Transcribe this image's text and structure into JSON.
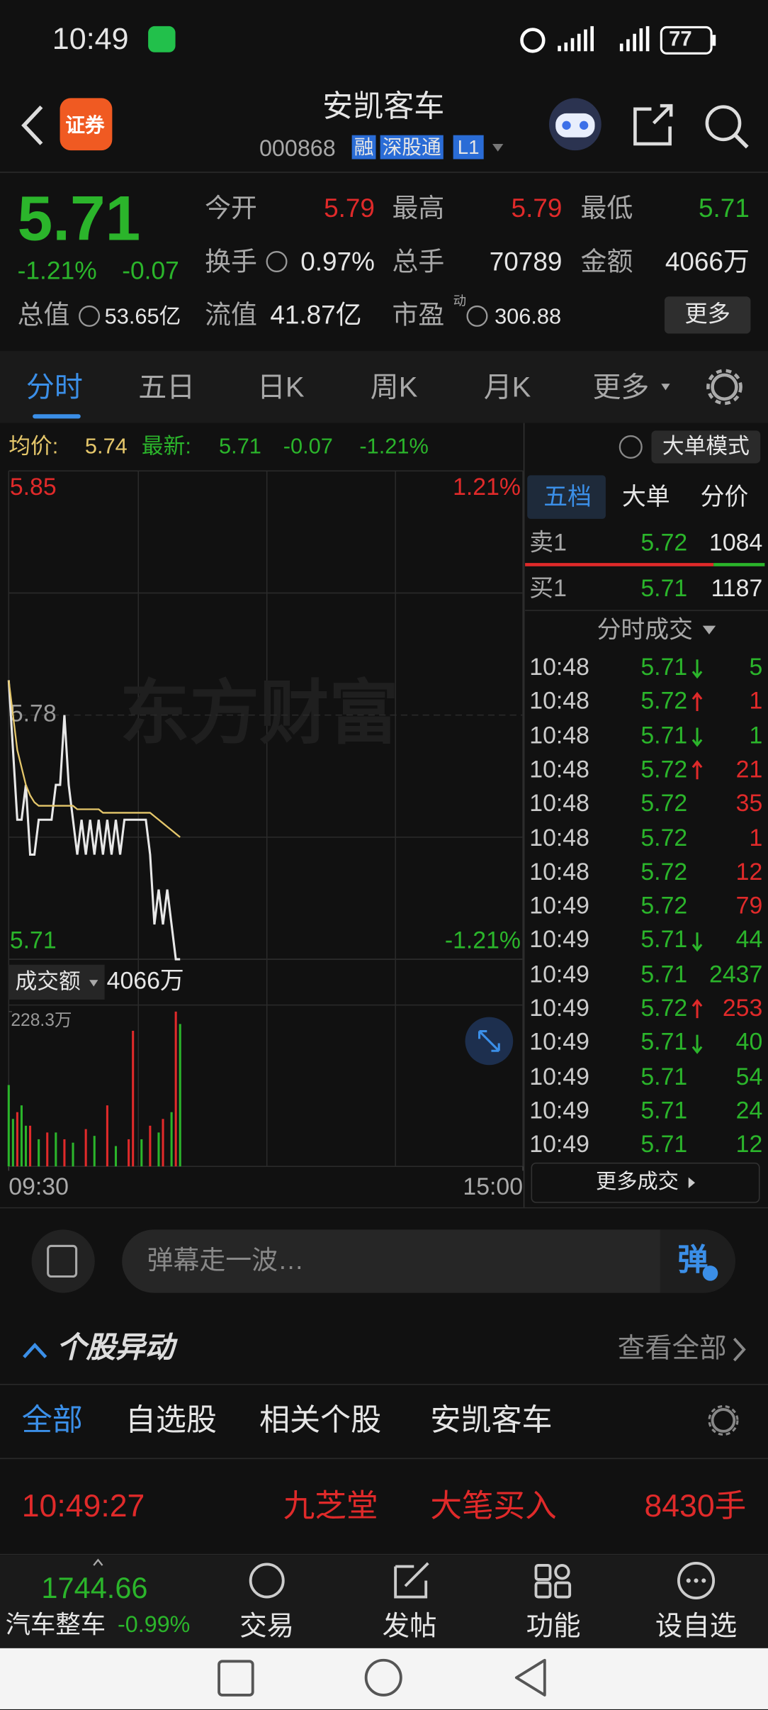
{
  "status_bar": {
    "time": "10:49",
    "battery": "77"
  },
  "header": {
    "logo_text": "证券",
    "title": "安凯客车",
    "code": "000868",
    "badges": [
      "融",
      "深股通",
      "L1"
    ]
  },
  "quote": {
    "price": "5.71",
    "change_percent": "-1.21%",
    "change": "-0.07",
    "stats": [
      {
        "label": "今开",
        "value": "5.79"
      },
      {
        "label": "最高",
        "value": "5.79"
      },
      {
        "label": "最低",
        "value": "5.71"
      },
      {
        "label": "换手",
        "value": "0.97%"
      },
      {
        "label": "总手",
        "value": "70789"
      },
      {
        "label": "金额",
        "value": "4066万"
      },
      {
        "label": "总值",
        "value": "53.65亿"
      },
      {
        "label": "流值",
        "value": "41.87亿"
      },
      {
        "label": "市盈",
        "value": "306.88"
      }
    ],
    "pe_superscript": "动",
    "more_button": "更多"
  },
  "tabs": [
    "分时",
    "五日",
    "日K",
    "周K",
    "月K",
    "更多"
  ],
  "info_line": {
    "avg_label": "均价:",
    "avg_value": "5.74",
    "latest_label": "最新:",
    "latest_value": "5.71",
    "change": "-0.07",
    "change_percent": "-1.21%",
    "mode_button": "大单模式"
  },
  "chart_data": [
    {
      "type": "line",
      "watermark": "东方财富",
      "x": [
        0,
        2,
        4,
        6,
        8,
        10,
        12,
        14,
        16,
        18,
        20,
        22,
        24,
        26,
        28,
        30,
        32,
        34,
        36,
        38,
        40,
        42,
        44,
        46,
        48,
        50,
        52,
        54,
        56,
        58,
        60,
        62,
        64,
        66,
        68,
        70,
        72,
        74,
        76,
        78,
        80
      ],
      "xlim": [
        0,
        240
      ],
      "xticks": [
        {
          "value": 0,
          "label": "09:30"
        },
        {
          "value": 240,
          "label": "15:00"
        }
      ],
      "ylim": [
        5.71,
        5.85
      ],
      "yticks": [
        5.71,
        5.78,
        5.85
      ],
      "y2lim": [
        -1.21,
        1.21
      ],
      "y2ticks": [
        {
          "value": -1.21,
          "label": "-1.21%"
        },
        {
          "value": 1.21,
          "label": "1.21%"
        }
      ],
      "series": [
        {
          "color": "#e8e8e8",
          "values": [
            5.79,
            5.77,
            5.75,
            5.75,
            5.76,
            5.74,
            5.74,
            5.75,
            5.75,
            5.75,
            5.75,
            5.76,
            5.76,
            5.78,
            5.76,
            5.75,
            5.74,
            5.75,
            5.74,
            5.75,
            5.74,
            5.75,
            5.74,
            5.75,
            5.74,
            5.75,
            5.74,
            5.75,
            5.75,
            5.75,
            5.75,
            5.75,
            5.75,
            5.74,
            5.72,
            5.73,
            5.72,
            5.73,
            5.72,
            5.71,
            5.71
          ]
        },
        {
          "color": "#e5c76b",
          "values": [
            5.79,
            5.78,
            5.77,
            5.765,
            5.76,
            5.757,
            5.755,
            5.754,
            5.754,
            5.754,
            5.754,
            5.754,
            5.754,
            5.754,
            5.754,
            5.754,
            5.753,
            5.753,
            5.753,
            5.753,
            5.753,
            5.753,
            5.752,
            5.752,
            5.752,
            5.752,
            5.752,
            5.752,
            5.752,
            5.752,
            5.752,
            5.752,
            5.752,
            5.752,
            5.751,
            5.75,
            5.749,
            5.748,
            5.747,
            5.746,
            5.745
          ]
        }
      ]
    },
    {
      "type": "bar",
      "label": "成交额",
      "total": "4066万",
      "xlim": [
        0,
        240
      ],
      "ylim": [
        0,
        228.3
      ],
      "yticks": [
        {
          "value": 228.3,
          "label": "228.3万"
        }
      ],
      "series": [
        {
          "color": "#e02a2a",
          "x": [
            4,
            10,
            18,
            26,
            36,
            46,
            56,
            58,
            66,
            72,
            78
          ],
          "values": [
            80,
            60,
            50,
            40,
            55,
            90,
            40,
            200,
            60,
            70,
            228.3
          ]
        },
        {
          "color": "#2bb52b",
          "x": [
            0,
            2,
            6,
            8,
            14,
            22,
            30,
            40,
            50,
            62,
            70,
            76,
            80
          ],
          "values": [
            120,
            70,
            90,
            60,
            40,
            50,
            35,
            45,
            30,
            40,
            50,
            80,
            210
          ]
        }
      ]
    }
  ],
  "order_book": {
    "tabs": [
      "五档",
      "大单",
      "分价"
    ],
    "rows": [
      {
        "label": "卖1",
        "price": "5.72",
        "volume": "1084"
      },
      {
        "label": "买1",
        "price": "5.71",
        "volume": "1187"
      }
    ]
  },
  "trades": {
    "title": "分时成交",
    "more": "更多成交",
    "rows": [
      {
        "time": "10:48",
        "price": "5.71",
        "direction": "down",
        "volume": "5",
        "color": "#2bb52b"
      },
      {
        "time": "10:48",
        "price": "5.72",
        "direction": "up",
        "volume": "1",
        "color": "#e02a2a"
      },
      {
        "time": "10:48",
        "price": "5.71",
        "direction": "down",
        "volume": "1",
        "color": "#2bb52b"
      },
      {
        "time": "10:48",
        "price": "5.72",
        "direction": "up",
        "volume": "21",
        "color": "#e02a2a"
      },
      {
        "time": "10:48",
        "price": "5.72",
        "volume": "35",
        "color": "#e02a2a"
      },
      {
        "time": "10:48",
        "price": "5.72",
        "volume": "1",
        "color": "#e02a2a"
      },
      {
        "time": "10:48",
        "price": "5.72",
        "volume": "12",
        "color": "#e02a2a"
      },
      {
        "time": "10:49",
        "price": "5.72",
        "volume": "79",
        "color": "#e02a2a"
      },
      {
        "time": "10:49",
        "price": "5.71",
        "direction": "down",
        "volume": "44",
        "color": "#2bb52b"
      },
      {
        "time": "10:49",
        "price": "5.71",
        "volume": "2437",
        "color": "#2bb52b"
      },
      {
        "time": "10:49",
        "price": "5.72",
        "direction": "up",
        "volume": "253",
        "color": "#e02a2a"
      },
      {
        "time": "10:49",
        "price": "5.71",
        "direction": "down",
        "volume": "40",
        "color": "#2bb52b"
      },
      {
        "time": "10:49",
        "price": "5.71",
        "volume": "54",
        "color": "#2bb52b"
      },
      {
        "time": "10:49",
        "price": "5.71",
        "volume": "24",
        "color": "#2bb52b"
      },
      {
        "time": "10:49",
        "price": "5.71",
        "volume": "12",
        "color": "#2bb52b"
      }
    ]
  },
  "comment_bar": {
    "placeholder": "弹幕走一波…",
    "button": "弹"
  },
  "movers": {
    "title": "个股异动",
    "view_all": "查看全部",
    "filters": [
      "全部",
      "自选股",
      "相关个股",
      "安凯客车"
    ],
    "rows": [
      {
        "time": "10:49:27",
        "stock": "九芝堂",
        "event": "大笔买入",
        "volume": "8430手"
      }
    ]
  },
  "bottom_bar": {
    "index_value": "1744.66",
    "index_name": "汽车整车",
    "index_change": "-0.99%",
    "items": [
      "交易",
      "发帖",
      "功能",
      "设自选"
    ]
  }
}
